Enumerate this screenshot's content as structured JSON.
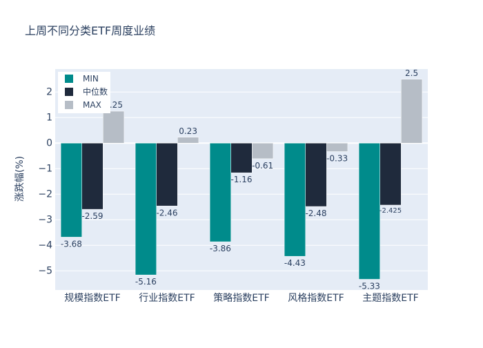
{
  "chart_data": {
    "type": "bar",
    "title": "上周不同分类ETF周度业绩",
    "ylabel": "涨跌幅(%)",
    "xlabel": "",
    "ylim": [
      -5.75,
      2.9
    ],
    "yticks": [
      -5,
      -4,
      -3,
      -2,
      -1,
      0,
      1,
      2
    ],
    "ytick_labels": [
      "−5",
      "−4",
      "−3",
      "−2",
      "−1",
      "0",
      "1",
      "2"
    ],
    "categories": [
      "规模指数ETF",
      "行业指数ETF",
      "策略指数ETF",
      "风格指数ETF",
      "主题指数ETF"
    ],
    "series": [
      {
        "name": "MIN",
        "color": "#008b8b",
        "values": [
          -3.68,
          -5.16,
          -3.86,
          -4.43,
          -5.33
        ],
        "labels": [
          "-3.68",
          "-5.16",
          "-3.86",
          "-4.43",
          "-5.33"
        ]
      },
      {
        "name": "中位数",
        "color": "#1f2a3c",
        "values": [
          -2.59,
          -2.46,
          -1.16,
          -2.48,
          -2.425
        ],
        "labels": [
          "-2.59",
          "-2.46",
          "-1.16",
          "-2.48",
          "-2.425"
        ]
      },
      {
        "name": "MAX",
        "color": "#b6bdc6",
        "values": [
          1.25,
          0.23,
          -0.61,
          -0.33,
          2.5
        ],
        "labels": [
          "1.25",
          "0.23",
          "-0.61",
          "-0.33",
          "2.5"
        ]
      }
    ],
    "grid": true,
    "legend_position": "top-left",
    "plot_background": "#e5ecf6"
  }
}
